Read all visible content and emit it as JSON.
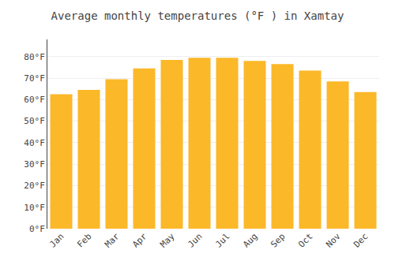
{
  "chart_data": {
    "type": "bar",
    "title": "Average monthly temperatures (°F ) in Xamtay",
    "categories": [
      "Jan",
      "Feb",
      "Mar",
      "Apr",
      "May",
      "Jun",
      "Jul",
      "Aug",
      "Sep",
      "Oct",
      "Nov",
      "Dec"
    ],
    "values": [
      62.5,
      64.5,
      69.5,
      74.5,
      78.5,
      79.5,
      79.5,
      78.0,
      76.5,
      73.5,
      68.5,
      63.5
    ],
    "color": "#FBB829",
    "ylim": [
      0,
      88
    ],
    "yticks": [
      {
        "value": 0,
        "label": "0°F"
      },
      {
        "value": 10,
        "label": "10°F"
      },
      {
        "value": 20,
        "label": "20°F"
      },
      {
        "value": 30,
        "label": "30°F"
      },
      {
        "value": 40,
        "label": "40°F"
      },
      {
        "value": 50,
        "label": "50°F"
      },
      {
        "value": 60,
        "label": "60°F"
      },
      {
        "value": 70,
        "label": "70°F"
      },
      {
        "value": 80,
        "label": "80°F"
      }
    ],
    "grid": true
  }
}
